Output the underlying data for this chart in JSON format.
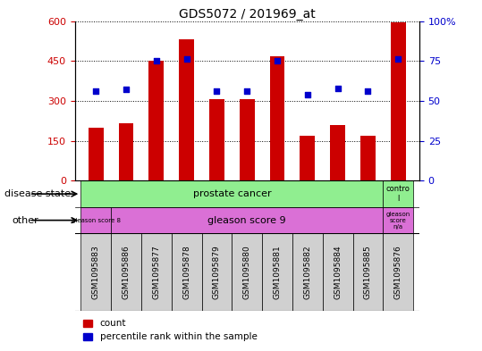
{
  "title": "GDS5072 / 201969_at",
  "samples": [
    "GSM1095883",
    "GSM1095886",
    "GSM1095877",
    "GSM1095878",
    "GSM1095879",
    "GSM1095880",
    "GSM1095881",
    "GSM1095882",
    "GSM1095884",
    "GSM1095885",
    "GSM1095876"
  ],
  "counts": [
    200,
    215,
    450,
    530,
    305,
    305,
    468,
    170,
    210,
    168,
    595
  ],
  "percentile_ranks": [
    56,
    57,
    75,
    76,
    56,
    56,
    75,
    54,
    58,
    56,
    76
  ],
  "ylim_left": [
    0,
    600
  ],
  "ylim_right": [
    0,
    100
  ],
  "yticks_left": [
    0,
    150,
    300,
    450,
    600
  ],
  "yticks_right": [
    0,
    25,
    50,
    75,
    100
  ],
  "bar_color": "#cc0000",
  "dot_color": "#0000cc",
  "bar_width": 0.5,
  "label_box_color": "#d0d0d0",
  "disease_state_green": "#90ee90",
  "other_magenta": "#da70d6",
  "annotation_disease_state": "disease state",
  "annotation_other": "other",
  "legend_items": [
    "count",
    "percentile rank within the sample"
  ]
}
